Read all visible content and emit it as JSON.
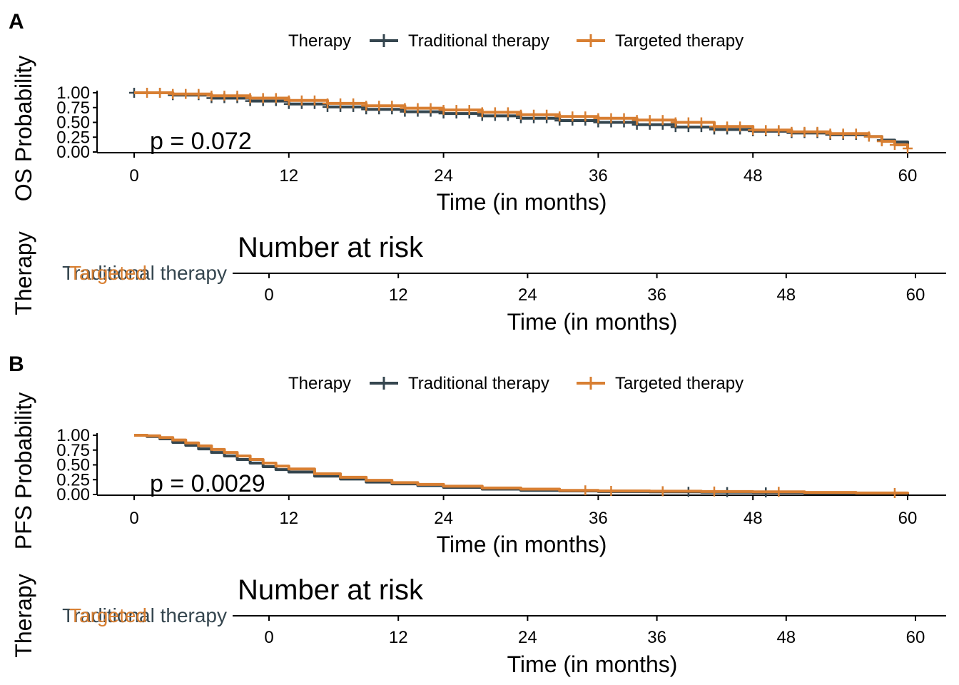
{
  "colors": {
    "traditional": "#35464f",
    "targeted": "#d87f32",
    "axis": "#000000"
  },
  "chart_data": [
    {
      "panel": "A",
      "type": "line",
      "subtype": "kaplan-meier",
      "legend": {
        "title": "Therapy",
        "entries": [
          "Traditional therapy",
          "Targeted therapy"
        ],
        "placement": "top"
      },
      "ylabel": "OS Probability",
      "xlabel": "Time (in months)",
      "xlim": [
        0,
        60
      ],
      "ylim": [
        0,
        1
      ],
      "xticks": [
        "0",
        "12",
        "24",
        "36",
        "48",
        "60"
      ],
      "yticks": [
        "0.00",
        "0.25",
        "0.50",
        "0.75",
        "1.00"
      ],
      "annotation": "p = 0.072",
      "series": [
        {
          "name": "Traditional therapy",
          "x": [
            0,
            3,
            6,
            9,
            12,
            15,
            18,
            21,
            24,
            27,
            30,
            33,
            36,
            39,
            42,
            45,
            48,
            51,
            54,
            57,
            58,
            59,
            60
          ],
          "y": [
            1.0,
            0.96,
            0.91,
            0.86,
            0.81,
            0.76,
            0.72,
            0.68,
            0.65,
            0.61,
            0.57,
            0.53,
            0.5,
            0.46,
            0.42,
            0.38,
            0.35,
            0.32,
            0.29,
            0.26,
            0.2,
            0.17,
            0.1
          ]
        },
        {
          "name": "Targeted therapy",
          "x": [
            0,
            3,
            6,
            9,
            12,
            15,
            18,
            21,
            24,
            27,
            30,
            33,
            36,
            39,
            42,
            45,
            48,
            51,
            54,
            57,
            58,
            59,
            60
          ],
          "y": [
            1.0,
            0.98,
            0.95,
            0.91,
            0.87,
            0.82,
            0.78,
            0.74,
            0.71,
            0.67,
            0.63,
            0.6,
            0.57,
            0.54,
            0.5,
            0.43,
            0.37,
            0.34,
            0.31,
            0.26,
            0.18,
            0.12,
            0.06
          ]
        }
      ],
      "censor_x": {
        "traditional": [
          0,
          2,
          3,
          5,
          6,
          7,
          8,
          9,
          10,
          11,
          12,
          13,
          14,
          15,
          16,
          17,
          18,
          19,
          20,
          21,
          22,
          23,
          24,
          25,
          26,
          27,
          28,
          29,
          30,
          31,
          32,
          33,
          34,
          35,
          36,
          37,
          38,
          39,
          40,
          41,
          42,
          43,
          44,
          45,
          46,
          47,
          48,
          49,
          50,
          51,
          52,
          53,
          54,
          55,
          56,
          57,
          58
        ],
        "targeted": [
          1,
          2,
          3,
          4,
          5,
          6,
          7,
          8,
          9,
          10,
          11,
          12,
          13,
          14,
          15,
          16,
          17,
          18,
          19,
          20,
          21,
          22,
          23,
          24,
          25,
          26,
          27,
          28,
          29,
          30,
          31,
          32,
          33,
          34,
          35,
          36,
          37,
          38,
          39,
          40,
          41,
          42,
          43,
          44,
          45,
          46,
          47,
          48,
          49,
          50,
          51,
          52,
          53,
          54,
          55,
          56,
          57,
          58,
          59,
          60
        ]
      },
      "risk_table": {
        "title": "Number at risk",
        "ylabel": "Therapy",
        "xlabel": "Time (in months)",
        "xticks": [
          "0",
          "12",
          "24",
          "36",
          "48",
          "60"
        ],
        "strata": [
          "Traditional therapy",
          "Targeted"
        ]
      }
    },
    {
      "panel": "B",
      "type": "line",
      "subtype": "kaplan-meier",
      "legend": {
        "title": "Therapy",
        "entries": [
          "Traditional therapy",
          "Targeted therapy"
        ],
        "placement": "top"
      },
      "ylabel": "PFS Probability",
      "xlabel": "Time (in months)",
      "xlim": [
        0,
        60
      ],
      "ylim": [
        0,
        1
      ],
      "xticks": [
        "0",
        "12",
        "24",
        "36",
        "48",
        "60"
      ],
      "yticks": [
        "0.00",
        "0.25",
        "0.50",
        "0.75",
        "1.00"
      ],
      "annotation": "p = 0.0029",
      "series": [
        {
          "name": "Traditional therapy",
          "x": [
            0,
            1,
            2,
            3,
            4,
            5,
            6,
            7,
            8,
            9,
            10,
            11,
            12,
            14,
            16,
            18,
            20,
            22,
            24,
            27,
            30,
            33,
            36,
            40,
            44,
            48,
            52,
            56,
            60
          ],
          "y": [
            1.0,
            0.98,
            0.94,
            0.88,
            0.83,
            0.77,
            0.71,
            0.65,
            0.59,
            0.53,
            0.47,
            0.42,
            0.38,
            0.31,
            0.26,
            0.21,
            0.18,
            0.15,
            0.12,
            0.09,
            0.07,
            0.06,
            0.05,
            0.045,
            0.04,
            0.035,
            0.025,
            0.02,
            0.0
          ]
        },
        {
          "name": "Targeted therapy",
          "x": [
            0,
            1,
            2,
            3,
            4,
            5,
            6,
            7,
            8,
            9,
            10,
            11,
            12,
            14,
            16,
            18,
            20,
            22,
            24,
            27,
            30,
            33,
            36,
            40,
            44,
            48,
            52,
            56,
            60
          ],
          "y": [
            1.0,
            0.99,
            0.96,
            0.92,
            0.87,
            0.82,
            0.76,
            0.71,
            0.65,
            0.59,
            0.53,
            0.48,
            0.43,
            0.35,
            0.29,
            0.24,
            0.2,
            0.17,
            0.14,
            0.11,
            0.09,
            0.07,
            0.06,
            0.055,
            0.05,
            0.045,
            0.035,
            0.025,
            0.01
          ]
        }
      ],
      "censor_x": {
        "traditional": [
          43,
          46,
          49
        ],
        "targeted": [
          35,
          37,
          41,
          45,
          50,
          59
        ]
      },
      "risk_table": {
        "title": "Number at risk",
        "ylabel": "Therapy",
        "xlabel": "Time (in months)",
        "xticks": [
          "0",
          "12",
          "24",
          "36",
          "48",
          "60"
        ],
        "strata": [
          "Traditional therapy",
          "Targeted"
        ]
      }
    }
  ]
}
